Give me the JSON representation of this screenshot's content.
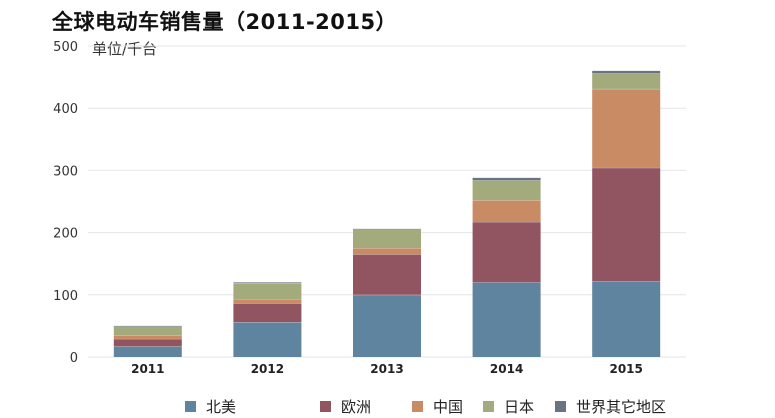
{
  "header": {
    "title": "全球电动车销售量（2011-2015）",
    "unit_label": "单位/千台"
  },
  "chart_data": {
    "type": "bar",
    "stacked": true,
    "title": "全球电动车销售量（2011-2015）",
    "ylabel": "单位/千台",
    "xlabel": "",
    "categories": [
      "2011",
      "2012",
      "2013",
      "2014",
      "2015"
    ],
    "ylim": [
      0,
      500
    ],
    "yticks": [
      0,
      100,
      200,
      300,
      400,
      500
    ],
    "grid": true,
    "legend_position": "bottom",
    "series": [
      {
        "name": "北美",
        "color": "#5f84a0",
        "values": [
          17,
          56,
          100,
          120,
          122
        ]
      },
      {
        "name": "欧洲",
        "color": "#905560",
        "values": [
          12,
          30,
          65,
          97,
          182
        ]
      },
      {
        "name": "中国",
        "color": "#c98b63",
        "values": [
          6,
          7,
          10,
          35,
          127
        ]
      },
      {
        "name": "日本",
        "color": "#a3aa7b",
        "values": [
          14,
          26,
          30,
          32,
          25
        ]
      },
      {
        "name": "世界其它地区",
        "color": "#687580",
        "values": [
          1,
          1,
          1,
          4,
          4
        ]
      }
    ]
  }
}
